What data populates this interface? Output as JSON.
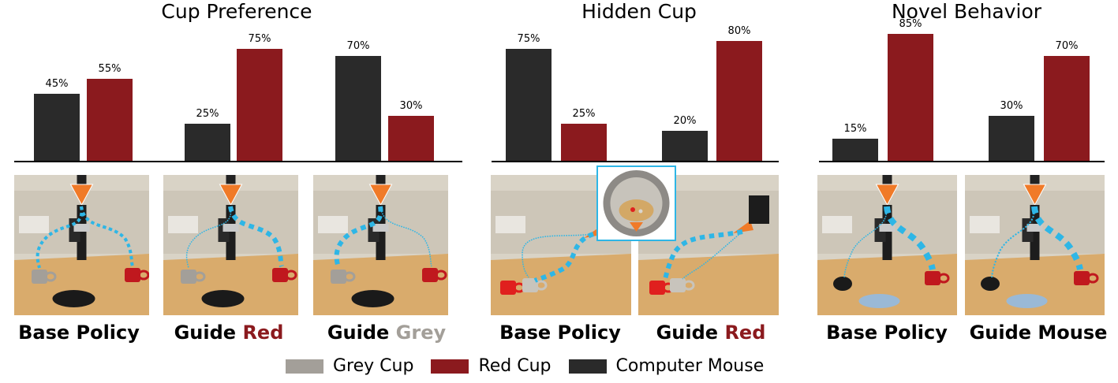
{
  "colors": {
    "grey": "#a39f99",
    "red": "#8b1a1e",
    "mouse": "#2a2a2a",
    "path": "#2eb6e6"
  },
  "legend": [
    {
      "label": "Grey Cup",
      "color": "#a39f99"
    },
    {
      "label": "Red Cup",
      "color": "#8b1a1e"
    },
    {
      "label": "Computer Mouse",
      "color": "#2a2a2a"
    }
  ],
  "chart_data": [
    {
      "type": "bar",
      "title": "Cup Preference",
      "categories": [
        "Base Policy",
        "Guide Red",
        "Guide Grey"
      ],
      "series": [
        {
          "values": [
            45,
            25,
            70
          ],
          "color": "#2a2a2a"
        },
        {
          "values": [
            55,
            75,
            30
          ],
          "color": "#8b1a1e"
        }
      ],
      "labels": [
        [
          "45%",
          "55%"
        ],
        [
          "25%",
          "75%"
        ],
        [
          "70%",
          "30%"
        ]
      ],
      "ylim": [
        0,
        100
      ]
    },
    {
      "type": "bar",
      "title": "Hidden Cup",
      "categories": [
        "Base Policy",
        "Guide Red"
      ],
      "series": [
        {
          "values": [
            75,
            20
          ],
          "color": "#2a2a2a"
        },
        {
          "values": [
            25,
            80
          ],
          "color": "#8b1a1e"
        }
      ],
      "labels": [
        [
          "75%",
          "25%"
        ],
        [
          "20%",
          "80%"
        ]
      ],
      "ylim": [
        0,
        100
      ]
    },
    {
      "type": "bar",
      "title": "Novel Behavior",
      "categories": [
        "Base Policy",
        "Guide Mouse"
      ],
      "series": [
        {
          "values": [
            15,
            30
          ],
          "color": "#2a2a2a"
        },
        {
          "values": [
            85,
            70
          ],
          "color": "#8b1a1e"
        }
      ],
      "labels": [
        [
          "15%",
          "85%"
        ],
        [
          "30%",
          "70%"
        ]
      ],
      "ylim": [
        0,
        100
      ]
    }
  ],
  "captions": {
    "p1": [
      {
        "pre": "Base Policy",
        "em": "",
        "emColor": ""
      },
      {
        "pre": "Guide ",
        "em": "Red",
        "emColor": "#8b1a1e"
      },
      {
        "pre": "Guide ",
        "em": "Grey",
        "emColor": "#a39f99"
      }
    ],
    "p2": [
      {
        "pre": "Base Policy",
        "em": "",
        "emColor": ""
      },
      {
        "pre": "Guide ",
        "em": "Red",
        "emColor": "#8b1a1e"
      }
    ],
    "p3": [
      {
        "pre": "Base Policy",
        "em": "",
        "emColor": ""
      },
      {
        "pre": "Guide Mouse",
        "em": "",
        "emColor": ""
      }
    ]
  }
}
